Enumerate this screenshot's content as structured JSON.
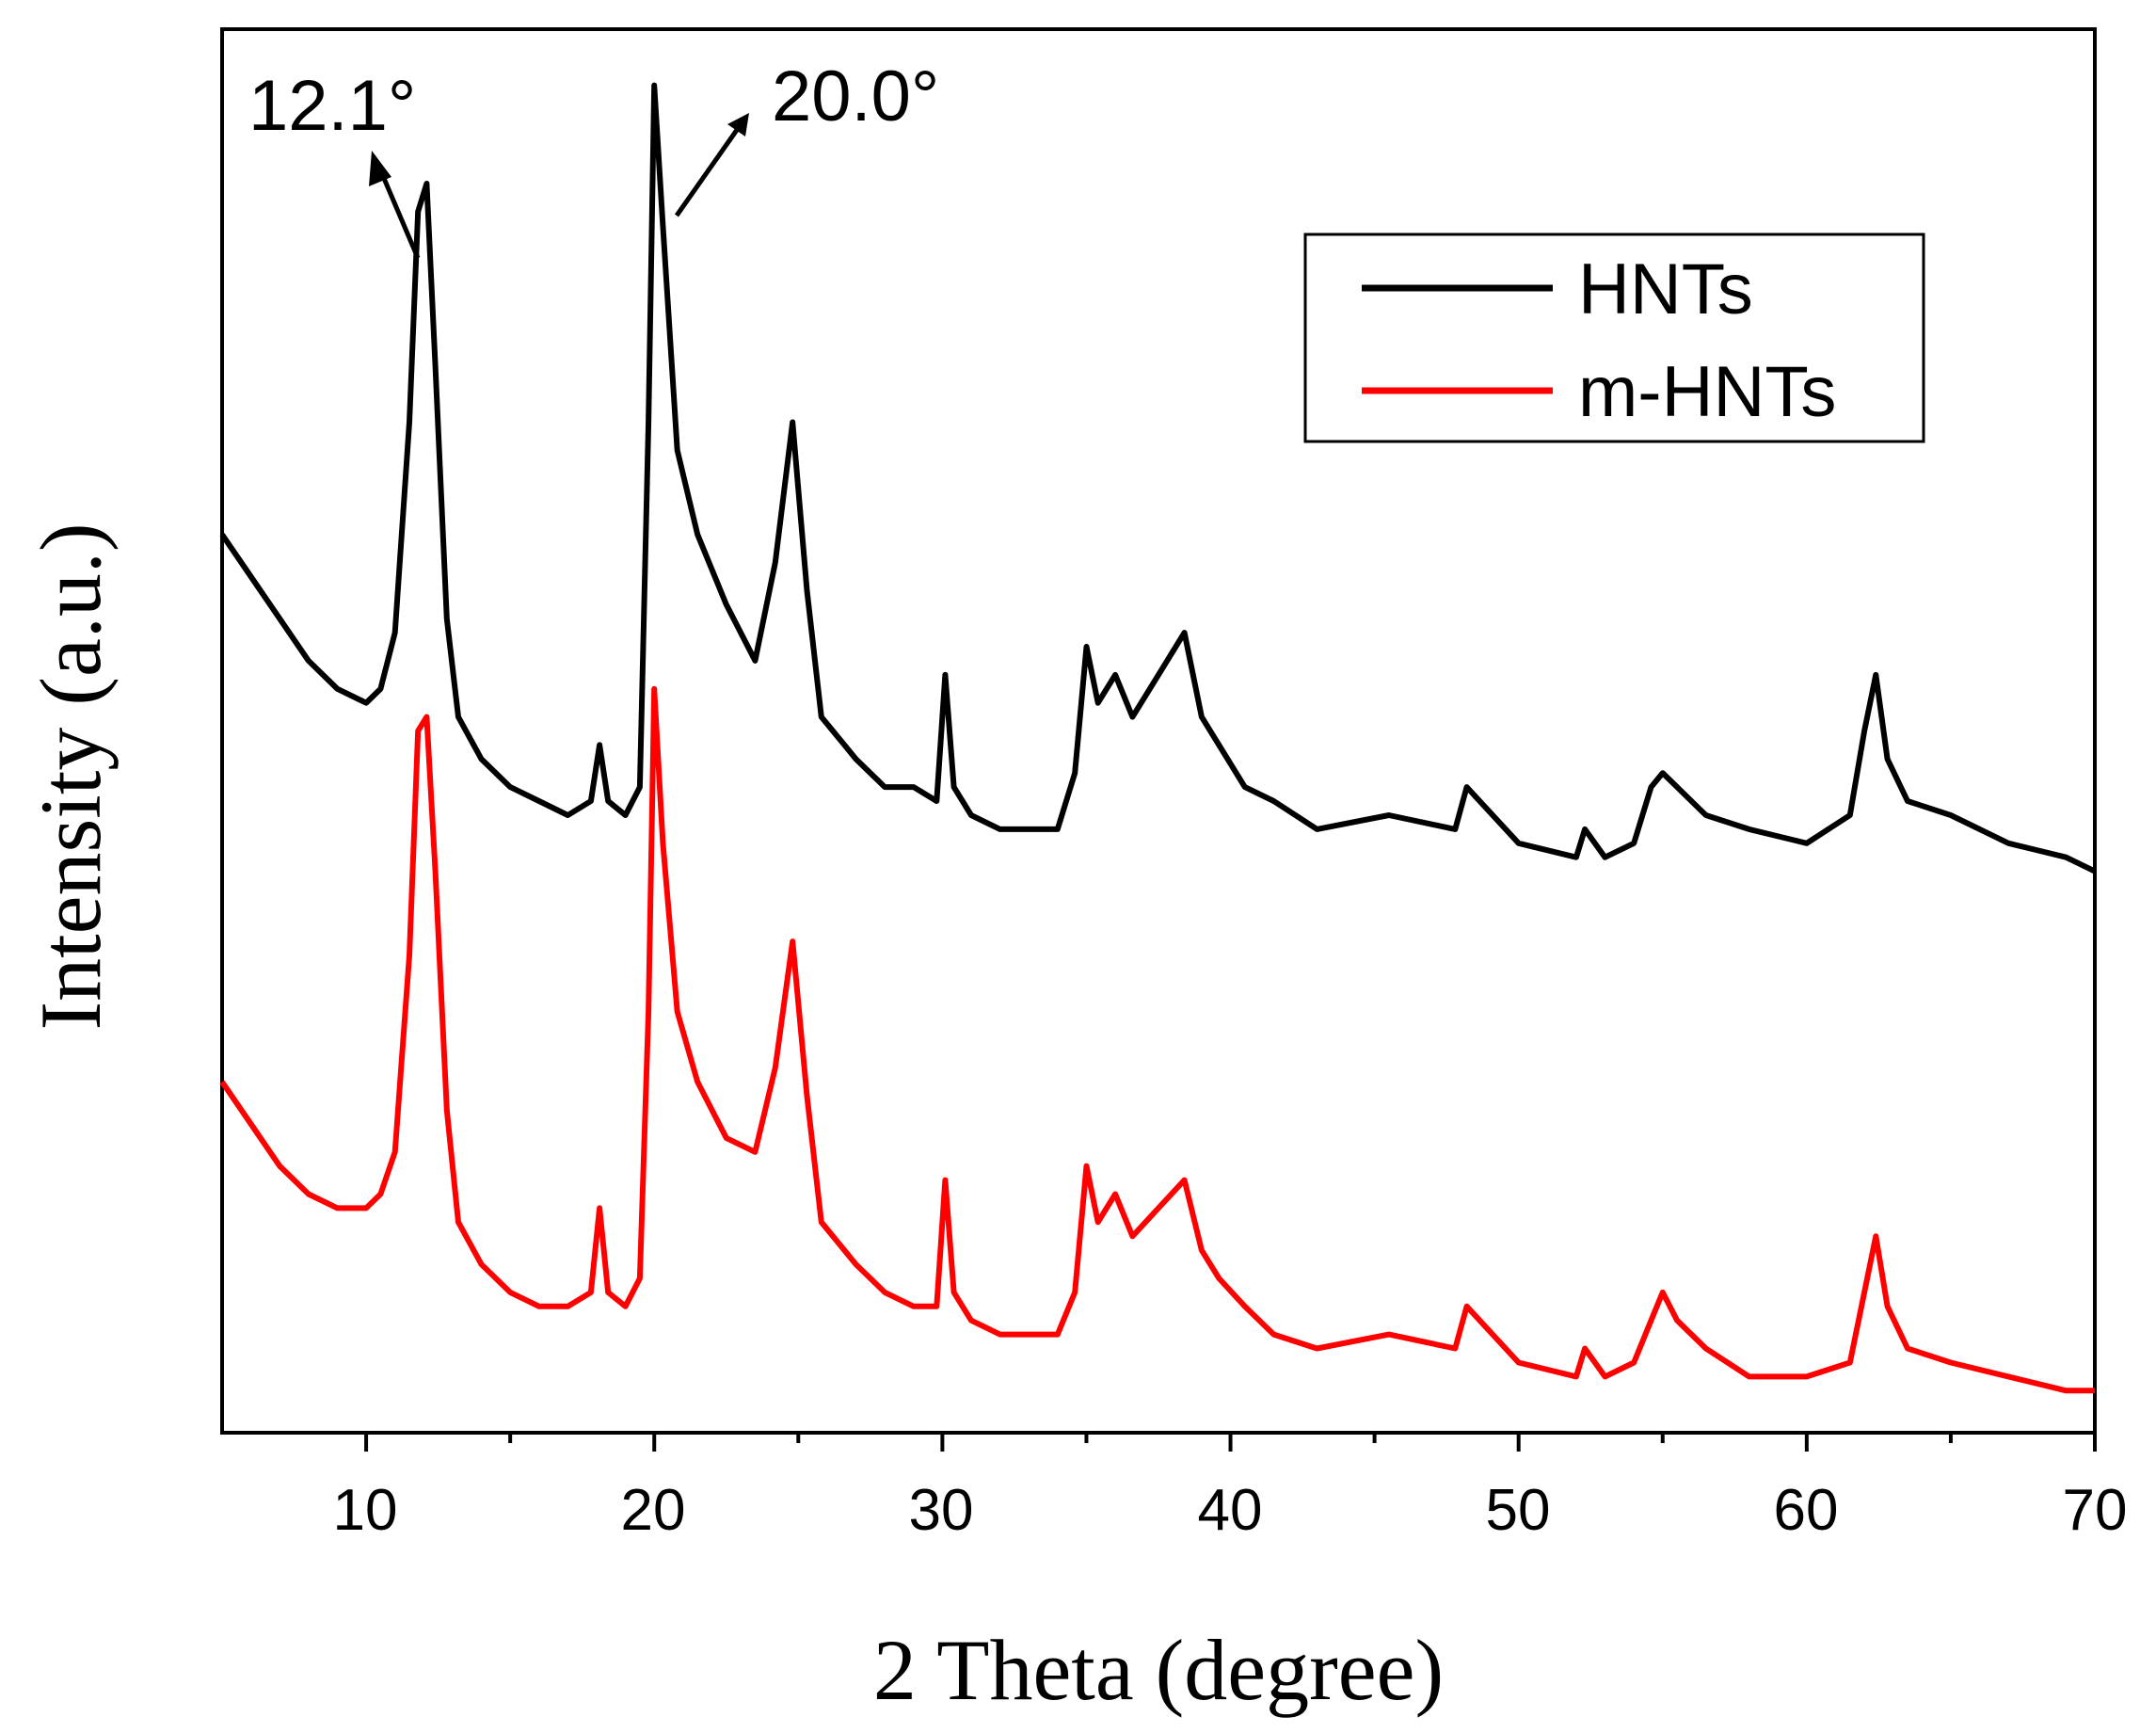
{
  "chart_data": {
    "type": "line",
    "title": "",
    "xlabel": "2 Theta (degree)",
    "ylabel": "Intensity (a.u.)",
    "xlim": [
      5,
      70
    ],
    "ylim": [
      0,
      100
    ],
    "x_ticks": [
      10,
      20,
      30,
      40,
      50,
      60,
      70
    ],
    "x_minor_ticks": [
      15,
      25,
      35,
      45,
      55,
      65
    ],
    "y_tick_labels": false,
    "grid": false,
    "legend_position": "top-right",
    "legend": [
      "HNTs",
      "m-HNTs"
    ],
    "annotations": [
      {
        "text": "12.1°",
        "x": 12.1,
        "arrow": true
      },
      {
        "text": "20.0°",
        "x": 20.0,
        "arrow": true
      }
    ],
    "series": [
      {
        "name": "HNTs",
        "color": "#000000",
        "x": [
          5,
          6,
          7,
          8,
          9,
          10,
          10.5,
          11,
          11.5,
          11.8,
          12.1,
          12.4,
          12.8,
          13.2,
          14,
          15,
          16,
          17,
          17.8,
          18.1,
          18.4,
          19,
          19.5,
          19.8,
          20.0,
          20.3,
          20.8,
          21.5,
          22.5,
          23.5,
          24.2,
          24.8,
          25.3,
          25.8,
          26.6,
          27,
          28,
          29,
          29.8,
          30.1,
          30.4,
          31,
          32,
          33,
          34,
          34.6,
          35.0,
          35.4,
          36.0,
          36.6,
          37.5,
          38.4,
          39,
          39.6,
          40.5,
          41.5,
          43,
          45.5,
          47.8,
          48.2,
          50,
          52,
          52.3,
          53,
          54,
          54.6,
          55.0,
          55.5,
          56.5,
          58,
          60,
          61.5,
          62.0,
          62.4,
          62.8,
          63.5,
          65,
          67,
          69,
          70
        ],
        "y": [
          64,
          61,
          58,
          55,
          53,
          52,
          53,
          57,
          72,
          87,
          89,
          76,
          58,
          51,
          48,
          46,
          45,
          44,
          45,
          49,
          45,
          44,
          46,
          72,
          96,
          86,
          70,
          64,
          59,
          55,
          62,
          72,
          60,
          51,
          49,
          48,
          46,
          46,
          45,
          54,
          46,
          44,
          43,
          43,
          43,
          47,
          56,
          52,
          54,
          51,
          54,
          57,
          51,
          49,
          46,
          45,
          43,
          44,
          43,
          46,
          42,
          41,
          43,
          41,
          42,
          46,
          47,
          46,
          44,
          43,
          42,
          44,
          50,
          54,
          48,
          45,
          44,
          42,
          41,
          40
        ]
      },
      {
        "name": "m-HNTs",
        "color": "#ff0000",
        "x": [
          5,
          6,
          7,
          8,
          9,
          10,
          10.5,
          11,
          11.5,
          11.8,
          12.1,
          12.4,
          12.8,
          13.2,
          14,
          15,
          16,
          17,
          17.8,
          18.1,
          18.4,
          19,
          19.5,
          19.8,
          20.0,
          20.3,
          20.8,
          21.5,
          22.5,
          23.5,
          24.2,
          24.8,
          25.3,
          25.8,
          26.6,
          27,
          28,
          29,
          29.8,
          30.1,
          30.4,
          31,
          32,
          33,
          34,
          34.6,
          35.0,
          35.4,
          36.0,
          36.6,
          37.5,
          38.4,
          39,
          39.6,
          40.5,
          41.5,
          43,
          45.5,
          47.8,
          48.2,
          50,
          52,
          52.3,
          53,
          54,
          54.6,
          55.0,
          55.5,
          56.5,
          58,
          60,
          61.5,
          62.0,
          62.4,
          62.8,
          63.5,
          65,
          67,
          69,
          70
        ],
        "y": [
          25,
          22,
          19,
          17,
          16,
          16,
          17,
          20,
          34,
          50,
          51,
          40,
          23,
          15,
          12,
          10,
          9,
          9,
          10,
          16,
          10,
          9,
          11,
          30,
          53,
          42,
          30,
          25,
          21,
          20,
          26,
          35,
          24,
          15,
          13,
          12,
          10,
          9,
          9,
          18,
          10,
          8,
          7,
          7,
          7,
          10,
          19,
          15,
          17,
          14,
          16,
          18,
          13,
          11,
          9,
          7,
          6,
          7,
          6,
          9,
          5,
          4,
          6,
          4,
          5,
          8,
          10,
          8,
          6,
          4,
          4,
          5,
          10,
          14,
          9,
          6,
          5,
          4,
          3,
          3
        ]
      }
    ]
  }
}
